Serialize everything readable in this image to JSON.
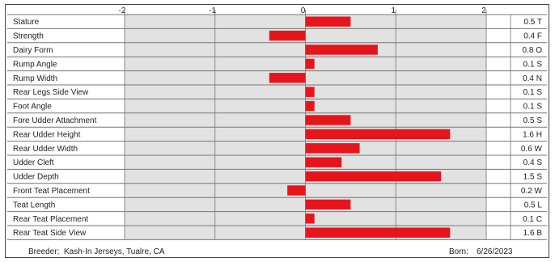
{
  "chart_data": {
    "type": "bar",
    "orientation": "horizontal",
    "xlim": [
      -2,
      2
    ],
    "xticks": [
      -2,
      -1,
      0,
      1,
      2
    ],
    "xtick_labels": [
      "-2",
      "-1",
      "0",
      "1",
      "2"
    ],
    "grid": true,
    "bar_color": "#e8141c",
    "plot_background": "#e2e2e2",
    "categories": [
      "Stature",
      "Strength",
      "Dairy Form",
      "Rump Angle",
      "Rump Width",
      "Rear Legs Side View",
      "Foot Angle",
      "Fore Udder Attachment",
      "Rear Udder Height",
      "Rear Udder Width",
      "Udder Cleft",
      "Udder Depth",
      "Front Teat Placement",
      "Teat Length",
      "Rear Teat Placement",
      "Rear Teat Side View"
    ],
    "values": [
      0.5,
      -0.4,
      0.8,
      0.1,
      -0.4,
      0.1,
      0.1,
      0.5,
      1.6,
      0.6,
      0.4,
      1.5,
      -0.2,
      0.5,
      0.1,
      1.6
    ],
    "value_labels": [
      "0.5 T",
      "0.4 F",
      "0.8 O",
      "0.1 S",
      "0.4 N",
      "0.1 S",
      "0.1 S",
      "0.5 S",
      "1.6 H",
      "0.6 W",
      "0.4 S",
      "1.5 S",
      "0.2 W",
      "0.5 L",
      "0.1 C",
      "1.6 B"
    ]
  },
  "footer": {
    "breeder_label": "Breeder:",
    "breeder_value": "Kash-In Jerseys, Tualre, CA",
    "born_label": "Born:",
    "born_value": "6/26/2023"
  }
}
